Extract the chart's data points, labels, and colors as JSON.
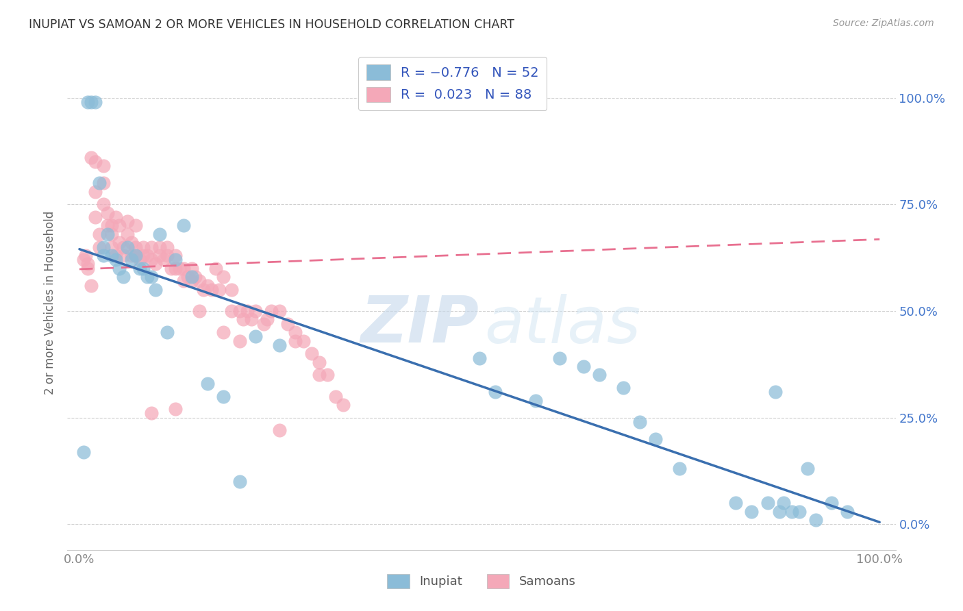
{
  "title": "INUPIAT VS SAMOAN 2 OR MORE VEHICLES IN HOUSEHOLD CORRELATION CHART",
  "source": "Source: ZipAtlas.com",
  "ylabel": "2 or more Vehicles in Household",
  "inupiat_color": "#8bbcd8",
  "samoan_color": "#f4a8b8",
  "inupiat_line_color": "#3a6faf",
  "samoan_line_color": "#e87090",
  "legend_color": "#3355bb",
  "background_color": "#ffffff",
  "inupiat_x": [
    0.005,
    0.01,
    0.015,
    0.02,
    0.025,
    0.03,
    0.03,
    0.035,
    0.04,
    0.045,
    0.05,
    0.055,
    0.06,
    0.065,
    0.07,
    0.075,
    0.08,
    0.085,
    0.09,
    0.095,
    0.1,
    0.11,
    0.12,
    0.13,
    0.14,
    0.16,
    0.18,
    0.2,
    0.22,
    0.25,
    0.5,
    0.52,
    0.57,
    0.6,
    0.63,
    0.65,
    0.68,
    0.7,
    0.72,
    0.75,
    0.82,
    0.84,
    0.86,
    0.87,
    0.875,
    0.88,
    0.89,
    0.9,
    0.91,
    0.92,
    0.94,
    0.96
  ],
  "inupiat_y": [
    0.17,
    0.99,
    0.99,
    0.99,
    0.8,
    0.65,
    0.63,
    0.68,
    0.63,
    0.62,
    0.6,
    0.58,
    0.65,
    0.62,
    0.63,
    0.6,
    0.6,
    0.58,
    0.58,
    0.55,
    0.68,
    0.45,
    0.62,
    0.7,
    0.58,
    0.33,
    0.3,
    0.1,
    0.44,
    0.42,
    0.39,
    0.31,
    0.29,
    0.39,
    0.37,
    0.35,
    0.32,
    0.24,
    0.2,
    0.13,
    0.05,
    0.03,
    0.05,
    0.31,
    0.03,
    0.05,
    0.03,
    0.03,
    0.13,
    0.01,
    0.05,
    0.03
  ],
  "samoan_x": [
    0.005,
    0.008,
    0.01,
    0.01,
    0.015,
    0.015,
    0.02,
    0.02,
    0.02,
    0.025,
    0.025,
    0.03,
    0.03,
    0.03,
    0.035,
    0.035,
    0.04,
    0.04,
    0.04,
    0.045,
    0.045,
    0.05,
    0.05,
    0.055,
    0.055,
    0.06,
    0.06,
    0.065,
    0.065,
    0.07,
    0.07,
    0.07,
    0.075,
    0.08,
    0.08,
    0.085,
    0.09,
    0.09,
    0.095,
    0.1,
    0.1,
    0.105,
    0.11,
    0.11,
    0.115,
    0.12,
    0.12,
    0.125,
    0.13,
    0.13,
    0.135,
    0.14,
    0.14,
    0.145,
    0.15,
    0.155,
    0.16,
    0.165,
    0.17,
    0.175,
    0.18,
    0.19,
    0.19,
    0.2,
    0.205,
    0.21,
    0.215,
    0.22,
    0.23,
    0.235,
    0.24,
    0.25,
    0.26,
    0.27,
    0.28,
    0.29,
    0.3,
    0.31,
    0.32,
    0.33,
    0.18,
    0.2,
    0.27,
    0.3,
    0.15,
    0.09,
    0.12,
    0.25
  ],
  "samoan_y": [
    0.62,
    0.63,
    0.61,
    0.6,
    0.86,
    0.56,
    0.85,
    0.78,
    0.72,
    0.68,
    0.65,
    0.84,
    0.8,
    0.75,
    0.73,
    0.7,
    0.7,
    0.68,
    0.65,
    0.72,
    0.63,
    0.7,
    0.66,
    0.65,
    0.63,
    0.71,
    0.68,
    0.66,
    0.63,
    0.7,
    0.65,
    0.63,
    0.62,
    0.65,
    0.63,
    0.63,
    0.65,
    0.62,
    0.61,
    0.65,
    0.63,
    0.62,
    0.65,
    0.63,
    0.6,
    0.63,
    0.6,
    0.6,
    0.6,
    0.57,
    0.58,
    0.6,
    0.57,
    0.58,
    0.57,
    0.55,
    0.56,
    0.55,
    0.6,
    0.55,
    0.58,
    0.55,
    0.5,
    0.5,
    0.48,
    0.5,
    0.48,
    0.5,
    0.47,
    0.48,
    0.5,
    0.5,
    0.47,
    0.45,
    0.43,
    0.4,
    0.38,
    0.35,
    0.3,
    0.28,
    0.45,
    0.43,
    0.43,
    0.35,
    0.5,
    0.26,
    0.27,
    0.22
  ],
  "inupiat_line_x": [
    0.0,
    1.0
  ],
  "inupiat_line_y": [
    0.645,
    0.005
  ],
  "samoan_line_x": [
    0.0,
    1.0
  ],
  "samoan_line_y": [
    0.598,
    0.668
  ],
  "xlim": [
    0.0,
    1.0
  ],
  "ylim": [
    0.0,
    1.0
  ],
  "yticks": [
    0.0,
    0.25,
    0.5,
    0.75,
    1.0
  ],
  "ytick_labels_right": [
    "0.0%",
    "25.0%",
    "50.0%",
    "75.0%",
    "100.0%"
  ],
  "xtick_labels": [
    "0.0%",
    "100.0%"
  ],
  "xtick_pos": [
    0.0,
    1.0
  ]
}
